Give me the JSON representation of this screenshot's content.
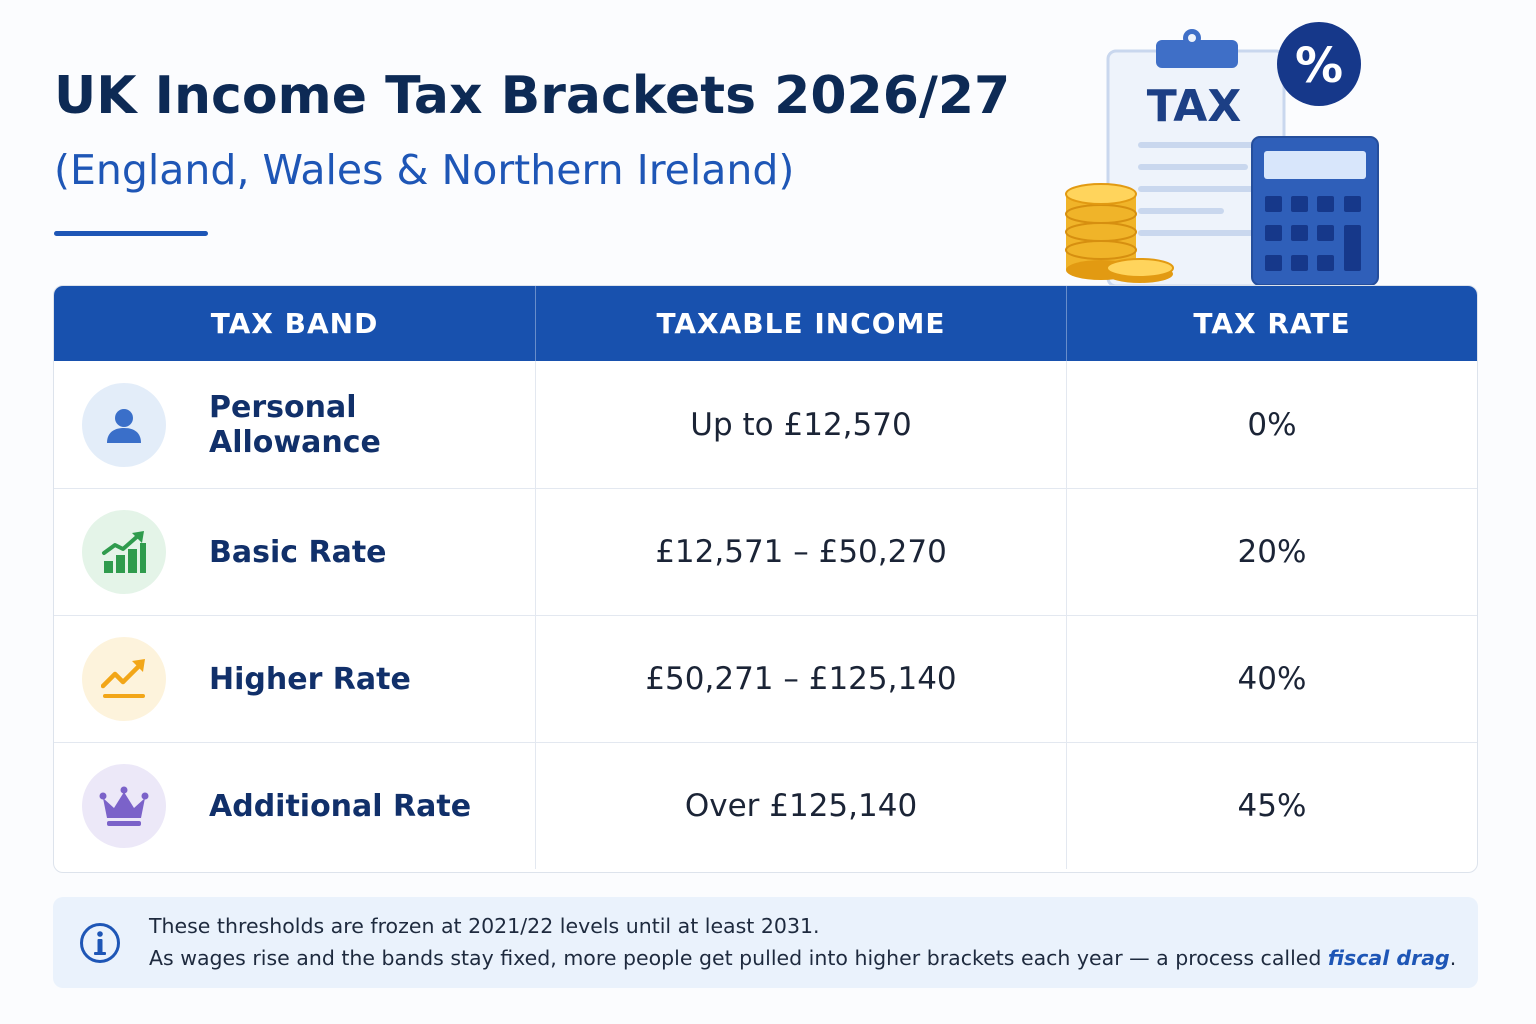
{
  "header": {
    "title": "UK Income Tax Brackets 2026/27",
    "subtitle": "(England, Wales & Northern Ireland)"
  },
  "illustration": {
    "clipboard_label": "TAX",
    "badge_symbol": "%",
    "icons": [
      "clipboard-icon",
      "percent-badge-icon",
      "calculator-icon",
      "coin-stack-icon"
    ]
  },
  "table": {
    "headers": [
      "TAX BAND",
      "TAXABLE INCOME",
      "TAX RATE"
    ],
    "rows": [
      {
        "band": "Personal Allowance",
        "income": "Up to £12,570",
        "rate": "0%",
        "icon": "person-icon",
        "color": "#3a6fc9",
        "bg": "#e3edf9"
      },
      {
        "band": "Basic Rate",
        "income": "£12,571 – £50,270",
        "rate": "20%",
        "icon": "bar-chart-up-icon",
        "color": "#2f9b4d",
        "bg": "#e4f4e8"
      },
      {
        "band": "Higher Rate",
        "income": "£50,271 – £125,140",
        "rate": "40%",
        "icon": "trend-up-icon",
        "color": "#f2a618",
        "bg": "#fdf3dc"
      },
      {
        "band": "Additional Rate",
        "income": "Over £125,140",
        "rate": "45%",
        "icon": "crown-icon",
        "color": "#7b62c9",
        "bg": "#ece8f8"
      }
    ]
  },
  "note": {
    "line1": "These thresholds are frozen at 2021/22 levels until at least 2031.",
    "line2_prefix": "As wages rise and the bands stay fixed, more people get pulled into higher brackets each year — a process called ",
    "line2_emphasis": "fiscal drag",
    "line2_suffix": ".",
    "icon": "info-icon"
  },
  "colors": {
    "header_bg": "#1851ae",
    "title": "#0d2a55",
    "accent": "#1e56b6",
    "note_bg": "#eaf2fc"
  }
}
